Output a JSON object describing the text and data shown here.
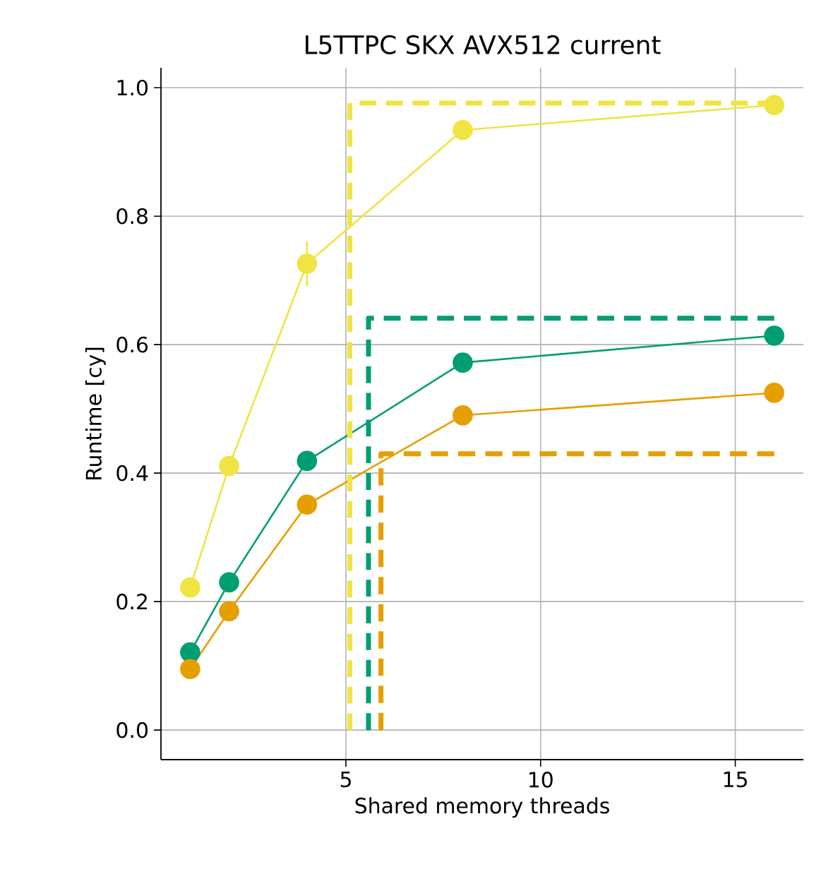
{
  "chart_data": {
    "type": "line",
    "title": "L5TTPC SKX AVX512 current",
    "xlabel": "Shared memory threads",
    "ylabel": "Runtime [cy]",
    "x": [
      1,
      2,
      4,
      8,
      16
    ],
    "xlim": [
      0.25,
      16.75
    ],
    "xticks": [
      5,
      10,
      15
    ],
    "ylim": [
      -0.046,
      1.031
    ],
    "yticks": [
      {
        "value": 0,
        "label": "0.0"
      },
      {
        "value": 0.2,
        "label": "0.2"
      },
      {
        "value": 0.4,
        "label": "0.4"
      },
      {
        "value": 0.6,
        "label": "0.6"
      },
      {
        "value": 0.8,
        "label": "0.8"
      },
      {
        "value": 1.0,
        "label": "1.0"
      }
    ],
    "grid": true,
    "marker": "circle",
    "line_style": "solid",
    "series": [
      {
        "color": "#f0e442",
        "values": [
          0.222,
          0.411,
          0.726,
          0.934,
          0.973
        ],
        "errors": [
          null,
          null,
          0.035,
          null,
          null
        ]
      },
      {
        "color": "#009e73",
        "values": [
          0.121,
          0.23,
          0.419,
          0.572,
          0.614
        ]
      },
      {
        "color": "#e69f00",
        "values": [
          0.095,
          0.185,
          0.351,
          0.49,
          0.525
        ]
      },
      {
        "color": "#f0e442",
        "type": "line",
        "marker": "none",
        "line_style": "dashed",
        "x": [
          5.1,
          5.1,
          16
        ],
        "values": [
          0,
          0.976,
          0.976
        ]
      },
      {
        "color": "#009e73",
        "type": "line",
        "marker": "none",
        "line_style": "dashed",
        "x": [
          5.58,
          5.58,
          16
        ],
        "values": [
          0,
          0.641,
          0.641
        ]
      },
      {
        "color": "#e69f00",
        "type": "line",
        "marker": "none",
        "line_style": "dashed",
        "x": [
          5.9,
          5.9,
          16
        ],
        "values": [
          0,
          0.43,
          0.43
        ]
      }
    ]
  }
}
